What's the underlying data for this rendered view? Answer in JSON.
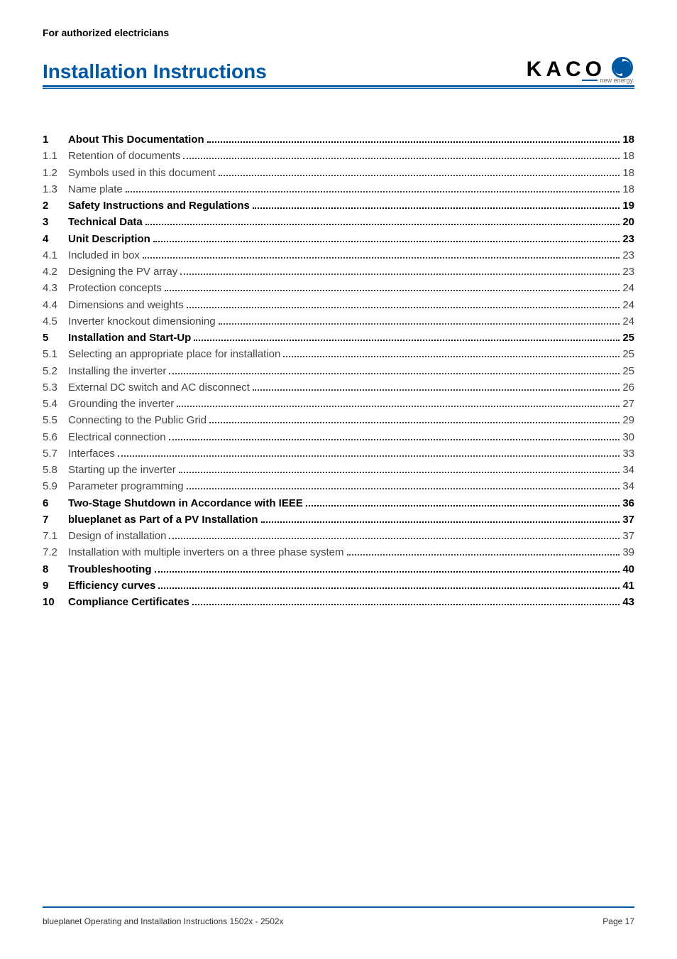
{
  "header": {
    "audience": "For authorized electricians",
    "title": "Installation Instructions",
    "brand": "KACO",
    "tagline": "new energy."
  },
  "colors": {
    "brand_blue": "#0058a3",
    "text_gray": "#444444",
    "background": "#ffffff"
  },
  "toc": {
    "entries": [
      {
        "num": "1",
        "title": "About This Documentation",
        "page": "18",
        "bold": true
      },
      {
        "num": "1.1",
        "title": "Retention of documents",
        "page": "18",
        "bold": false
      },
      {
        "num": "1.2",
        "title": "Symbols used in this document",
        "page": "18",
        "bold": false
      },
      {
        "num": "1.3",
        "title": "Name plate",
        "page": "18",
        "bold": false
      },
      {
        "num": "2",
        "title": "Safety Instructions and Regulations",
        "page": "19",
        "bold": true
      },
      {
        "num": "3",
        "title": "Technical Data",
        "page": "20",
        "bold": true
      },
      {
        "num": "4",
        "title": "Unit Description",
        "page": "23",
        "bold": true
      },
      {
        "num": "4.1",
        "title": "Included in box",
        "page": "23",
        "bold": false
      },
      {
        "num": "4.2",
        "title": "Designing the PV array",
        "page": "23",
        "bold": false
      },
      {
        "num": "4.3",
        "title": "Protection concepts",
        "page": "24",
        "bold": false
      },
      {
        "num": "4.4",
        "title": "Dimensions and weights",
        "page": "24",
        "bold": false
      },
      {
        "num": "4.5",
        "title": "Inverter knockout dimensioning",
        "page": "24",
        "bold": false
      },
      {
        "num": "5",
        "title": "Installation and Start-Up",
        "page": "25",
        "bold": true
      },
      {
        "num": "5.1",
        "title": "Selecting an appropriate place for installation",
        "page": "25",
        "bold": false
      },
      {
        "num": "5.2",
        "title": "Installing the inverter",
        "page": "25",
        "bold": false
      },
      {
        "num": "5.3",
        "title": "External DC switch and AC disconnect",
        "page": "26",
        "bold": false
      },
      {
        "num": "5.4",
        "title": "Grounding the inverter",
        "page": "27",
        "bold": false
      },
      {
        "num": "5.5",
        "title": "Connecting to the Public Grid",
        "page": "29",
        "bold": false
      },
      {
        "num": "5.6",
        "title": "Electrical connection",
        "page": "30",
        "bold": false
      },
      {
        "num": "5.7",
        "title": "Interfaces",
        "page": "33",
        "bold": false
      },
      {
        "num": "5.8",
        "title": "Starting up the inverter",
        "page": "34",
        "bold": false
      },
      {
        "num": "5.9",
        "title": "Parameter programming",
        "page": "34",
        "bold": false
      },
      {
        "num": "6",
        "title": "Two-Stage Shutdown in Accordance with IEEE",
        "page": "36",
        "bold": true
      },
      {
        "num": "7",
        "title": "blueplanet as Part of a PV Installation",
        "page": "37",
        "bold": true
      },
      {
        "num": "7.1",
        "title": "Design of installation",
        "page": "37",
        "bold": false
      },
      {
        "num": "7.2",
        "title": "Installation with multiple inverters on a three phase system",
        "page": "39",
        "bold": false
      },
      {
        "num": "8",
        "title": "Troubleshooting",
        "page": "40",
        "bold": true
      },
      {
        "num": "9",
        "title": "Efficiency curves",
        "page": "41",
        "bold": true
      },
      {
        "num": "10",
        "title": "Compliance Certificates",
        "page": "43",
        "bold": true
      }
    ]
  },
  "footer": {
    "doc_name": "blueplanet Operating and Installation Instructions 1502x - 2502x",
    "page_label": "Page 17"
  }
}
